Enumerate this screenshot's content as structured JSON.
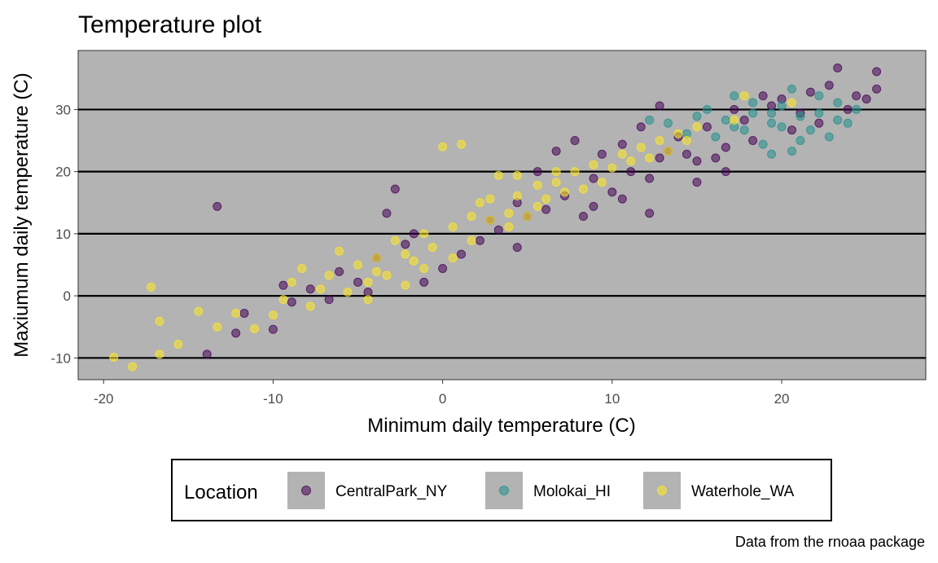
{
  "chart_data": {
    "type": "scatter",
    "title": "Temperature plot",
    "xlabel": "Minimum daily temperature (C)",
    "ylabel": "Maxiumum daily temperature (C)",
    "caption": "Data from the rnoaa package",
    "xlim": [
      -21.5,
      28.5
    ],
    "ylim": [
      -13.5,
      39.5
    ],
    "x_ticks": [
      -20,
      -10,
      0,
      10,
      20
    ],
    "y_ticks": [
      -10,
      0,
      10,
      20,
      30
    ],
    "x_tick_labels": [
      "-20",
      "-10",
      "0",
      "10",
      "20"
    ],
    "y_tick_labels": [
      "-10",
      "0",
      "10",
      "20",
      "30"
    ],
    "grid": "major horizontal, black",
    "panel_background": "#b3b3b3",
    "legend": {
      "title": "Location",
      "position": "bottom"
    },
    "series": [
      {
        "name": "CentralPark_NY",
        "color": "#440154",
        "points": [
          [
            -13.3,
            14.4
          ],
          [
            -12.2,
            -6.0
          ],
          [
            -11.7,
            -2.8
          ],
          [
            -10.0,
            -5.4
          ],
          [
            -13.9,
            -9.4
          ],
          [
            -8.9,
            -1.0
          ],
          [
            -7.8,
            1.1
          ],
          [
            -6.1,
            3.9
          ],
          [
            -5.0,
            2.2
          ],
          [
            -3.9,
            6.1
          ],
          [
            -2.8,
            17.2
          ],
          [
            -3.3,
            13.3
          ],
          [
            -2.2,
            8.3
          ],
          [
            -1.1,
            2.2
          ],
          [
            0.0,
            4.4
          ],
          [
            1.1,
            6.7
          ],
          [
            2.2,
            8.9
          ],
          [
            3.3,
            10.6
          ],
          [
            4.4,
            15.0
          ],
          [
            5.0,
            12.8
          ],
          [
            5.6,
            20.0
          ],
          [
            6.1,
            13.9
          ],
          [
            6.7,
            23.3
          ],
          [
            7.2,
            16.1
          ],
          [
            7.8,
            25.0
          ],
          [
            8.3,
            12.8
          ],
          [
            8.9,
            18.9
          ],
          [
            9.4,
            22.8
          ],
          [
            10.0,
            16.7
          ],
          [
            10.6,
            24.4
          ],
          [
            11.1,
            20.0
          ],
          [
            11.7,
            27.2
          ],
          [
            12.2,
            18.9
          ],
          [
            12.2,
            13.3
          ],
          [
            12.8,
            22.2
          ],
          [
            13.3,
            23.3
          ],
          [
            13.9,
            25.6
          ],
          [
            15.0,
            21.7
          ],
          [
            15.6,
            27.2
          ],
          [
            16.1,
            22.2
          ],
          [
            16.7,
            23.9
          ],
          [
            17.2,
            30.0
          ],
          [
            17.8,
            28.3
          ],
          [
            18.3,
            25.0
          ],
          [
            18.9,
            32.2
          ],
          [
            19.4,
            30.6
          ],
          [
            20.0,
            31.7
          ],
          [
            20.6,
            26.7
          ],
          [
            21.1,
            29.4
          ],
          [
            21.7,
            32.8
          ],
          [
            22.2,
            27.8
          ],
          [
            22.8,
            33.9
          ],
          [
            23.3,
            36.7
          ],
          [
            23.9,
            30.0
          ],
          [
            24.4,
            32.2
          ],
          [
            25.6,
            36.1
          ],
          [
            25.6,
            33.3
          ],
          [
            25.0,
            31.7
          ],
          [
            16.7,
            20.0
          ],
          [
            15.0,
            18.3
          ],
          [
            -4.4,
            0.6
          ],
          [
            -6.7,
            -0.6
          ],
          [
            -9.4,
            1.7
          ],
          [
            -1.7,
            10.0
          ],
          [
            2.8,
            12.2
          ],
          [
            4.4,
            7.8
          ],
          [
            8.9,
            14.4
          ],
          [
            10.6,
            15.6
          ],
          [
            12.8,
            30.6
          ],
          [
            14.4,
            22.8
          ]
        ]
      },
      {
        "name": "Molokai_HI",
        "color": "#21908C",
        "points": [
          [
            12.2,
            28.3
          ],
          [
            13.3,
            27.8
          ],
          [
            14.4,
            26.1
          ],
          [
            15.0,
            28.9
          ],
          [
            15.6,
            30.0
          ],
          [
            16.1,
            25.6
          ],
          [
            16.7,
            28.3
          ],
          [
            17.2,
            32.2
          ],
          [
            17.8,
            26.7
          ],
          [
            18.3,
            29.4
          ],
          [
            18.9,
            24.4
          ],
          [
            19.4,
            27.8
          ],
          [
            20.0,
            30.6
          ],
          [
            20.6,
            23.3
          ],
          [
            21.1,
            28.9
          ],
          [
            21.7,
            26.7
          ],
          [
            22.2,
            29.4
          ],
          [
            22.8,
            25.6
          ],
          [
            23.3,
            31.1
          ],
          [
            23.9,
            27.8
          ],
          [
            24.4,
            30.0
          ],
          [
            20.6,
            33.3
          ],
          [
            19.4,
            22.8
          ],
          [
            22.2,
            32.2
          ],
          [
            18.3,
            31.1
          ],
          [
            21.1,
            25.0
          ],
          [
            17.2,
            27.2
          ],
          [
            19.4,
            29.4
          ],
          [
            20.0,
            27.2
          ],
          [
            23.3,
            28.3
          ]
        ]
      },
      {
        "name": "Waterhole_WA",
        "color": "#FDE725",
        "points": [
          [
            -19.4,
            -9.9
          ],
          [
            -18.3,
            -11.4
          ],
          [
            -16.7,
            -9.4
          ],
          [
            -15.6,
            -7.8
          ],
          [
            -17.2,
            1.4
          ],
          [
            -16.7,
            -4.1
          ],
          [
            -14.4,
            -2.5
          ],
          [
            -13.3,
            -5.0
          ],
          [
            -12.2,
            -2.8
          ],
          [
            -11.1,
            -5.3
          ],
          [
            -10.0,
            -3.1
          ],
          [
            -9.4,
            -0.6
          ],
          [
            -8.9,
            2.2
          ],
          [
            -8.3,
            4.4
          ],
          [
            -7.8,
            -1.7
          ],
          [
            -7.2,
            1.1
          ],
          [
            -6.7,
            3.3
          ],
          [
            -6.1,
            7.2
          ],
          [
            -5.6,
            0.6
          ],
          [
            -5.0,
            5.0
          ],
          [
            -4.4,
            2.2
          ],
          [
            -3.9,
            6.1
          ],
          [
            -3.3,
            3.3
          ],
          [
            -2.8,
            8.9
          ],
          [
            -2.2,
            1.7
          ],
          [
            -1.7,
            5.6
          ],
          [
            -1.1,
            10.0
          ],
          [
            -0.6,
            7.8
          ],
          [
            0.0,
            24.0
          ],
          [
            0.6,
            11.1
          ],
          [
            1.1,
            24.4
          ],
          [
            1.7,
            8.9
          ],
          [
            2.2,
            15.0
          ],
          [
            2.8,
            12.2
          ],
          [
            3.3,
            19.4
          ],
          [
            3.9,
            13.3
          ],
          [
            4.4,
            16.1
          ],
          [
            5.0,
            12.8
          ],
          [
            5.6,
            17.8
          ],
          [
            6.1,
            15.6
          ],
          [
            6.7,
            18.3
          ],
          [
            7.2,
            16.7
          ],
          [
            7.8,
            20.0
          ],
          [
            8.3,
            17.2
          ],
          [
            8.9,
            21.1
          ],
          [
            9.4,
            18.3
          ],
          [
            10.0,
            20.6
          ],
          [
            10.6,
            22.8
          ],
          [
            11.1,
            21.7
          ],
          [
            11.7,
            23.9
          ],
          [
            12.2,
            22.2
          ],
          [
            12.8,
            25.0
          ],
          [
            13.3,
            23.3
          ],
          [
            13.9,
            26.1
          ],
          [
            14.4,
            25.0
          ],
          [
            15.0,
            27.2
          ],
          [
            17.2,
            28.3
          ],
          [
            17.8,
            32.2
          ],
          [
            20.6,
            31.1
          ],
          [
            -4.4,
            -0.6
          ],
          [
            -3.9,
            3.9
          ],
          [
            -2.2,
            6.7
          ],
          [
            -1.1,
            4.4
          ],
          [
            0.6,
            6.1
          ],
          [
            1.7,
            12.8
          ],
          [
            2.8,
            15.6
          ],
          [
            3.9,
            11.1
          ],
          [
            4.4,
            19.4
          ],
          [
            5.6,
            14.4
          ],
          [
            6.7,
            20.0
          ]
        ]
      }
    ]
  }
}
